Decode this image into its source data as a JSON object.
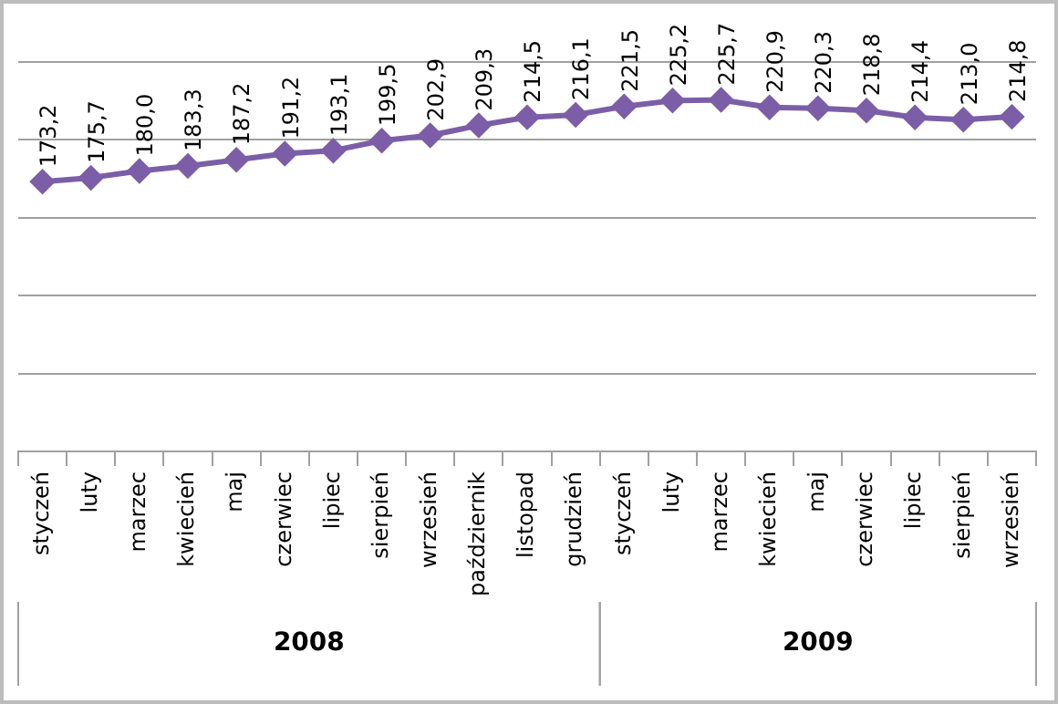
{
  "chart_data": {
    "type": "line",
    "categories": [
      "styczeń",
      "luty",
      "marzec",
      "kwiecień",
      "maj",
      "czerwiec",
      "lipiec",
      "sierpień",
      "wrzesień",
      "październik",
      "listopad",
      "grudzień",
      "styczeń",
      "luty",
      "marzec",
      "kwiecień",
      "maj",
      "czerwiec",
      "lipiec",
      "sierpień",
      "wrzesień"
    ],
    "series": [
      {
        "color": "#7b5ea7",
        "values": [
          173.2,
          175.7,
          180.0,
          183.3,
          187.2,
          191.2,
          193.1,
          199.5,
          202.9,
          209.3,
          214.5,
          216.1,
          221.5,
          225.2,
          225.7,
          220.9,
          220.3,
          218.8,
          214.4,
          213.0,
          214.8
        ],
        "value_labels": [
          "173,2",
          "175,7",
          "180,0",
          "183,3",
          "187,2",
          "191,2",
          "193,1",
          "199,5",
          "202,9",
          "209,3",
          "214,5",
          "216,1",
          "221,5",
          "225,2",
          "225,7",
          "220,9",
          "220,3",
          "218,8",
          "214,4",
          "213,0",
          "214,8"
        ]
      }
    ],
    "ylim": [
      0,
      250
    ],
    "yticks": [
      {
        "value": 0,
        "label": null
      },
      {
        "value": 50,
        "label": null
      },
      {
        "value": 100,
        "label": null
      },
      {
        "value": 150,
        "label": null
      },
      {
        "value": 200,
        "label": null
      },
      {
        "value": 250,
        "label": null
      }
    ],
    "annotations": [
      "2008",
      "2009"
    ],
    "grid": "y",
    "legend": false,
    "tick_labels": "x",
    "marker": "diamond",
    "line_style": "solid"
  }
}
